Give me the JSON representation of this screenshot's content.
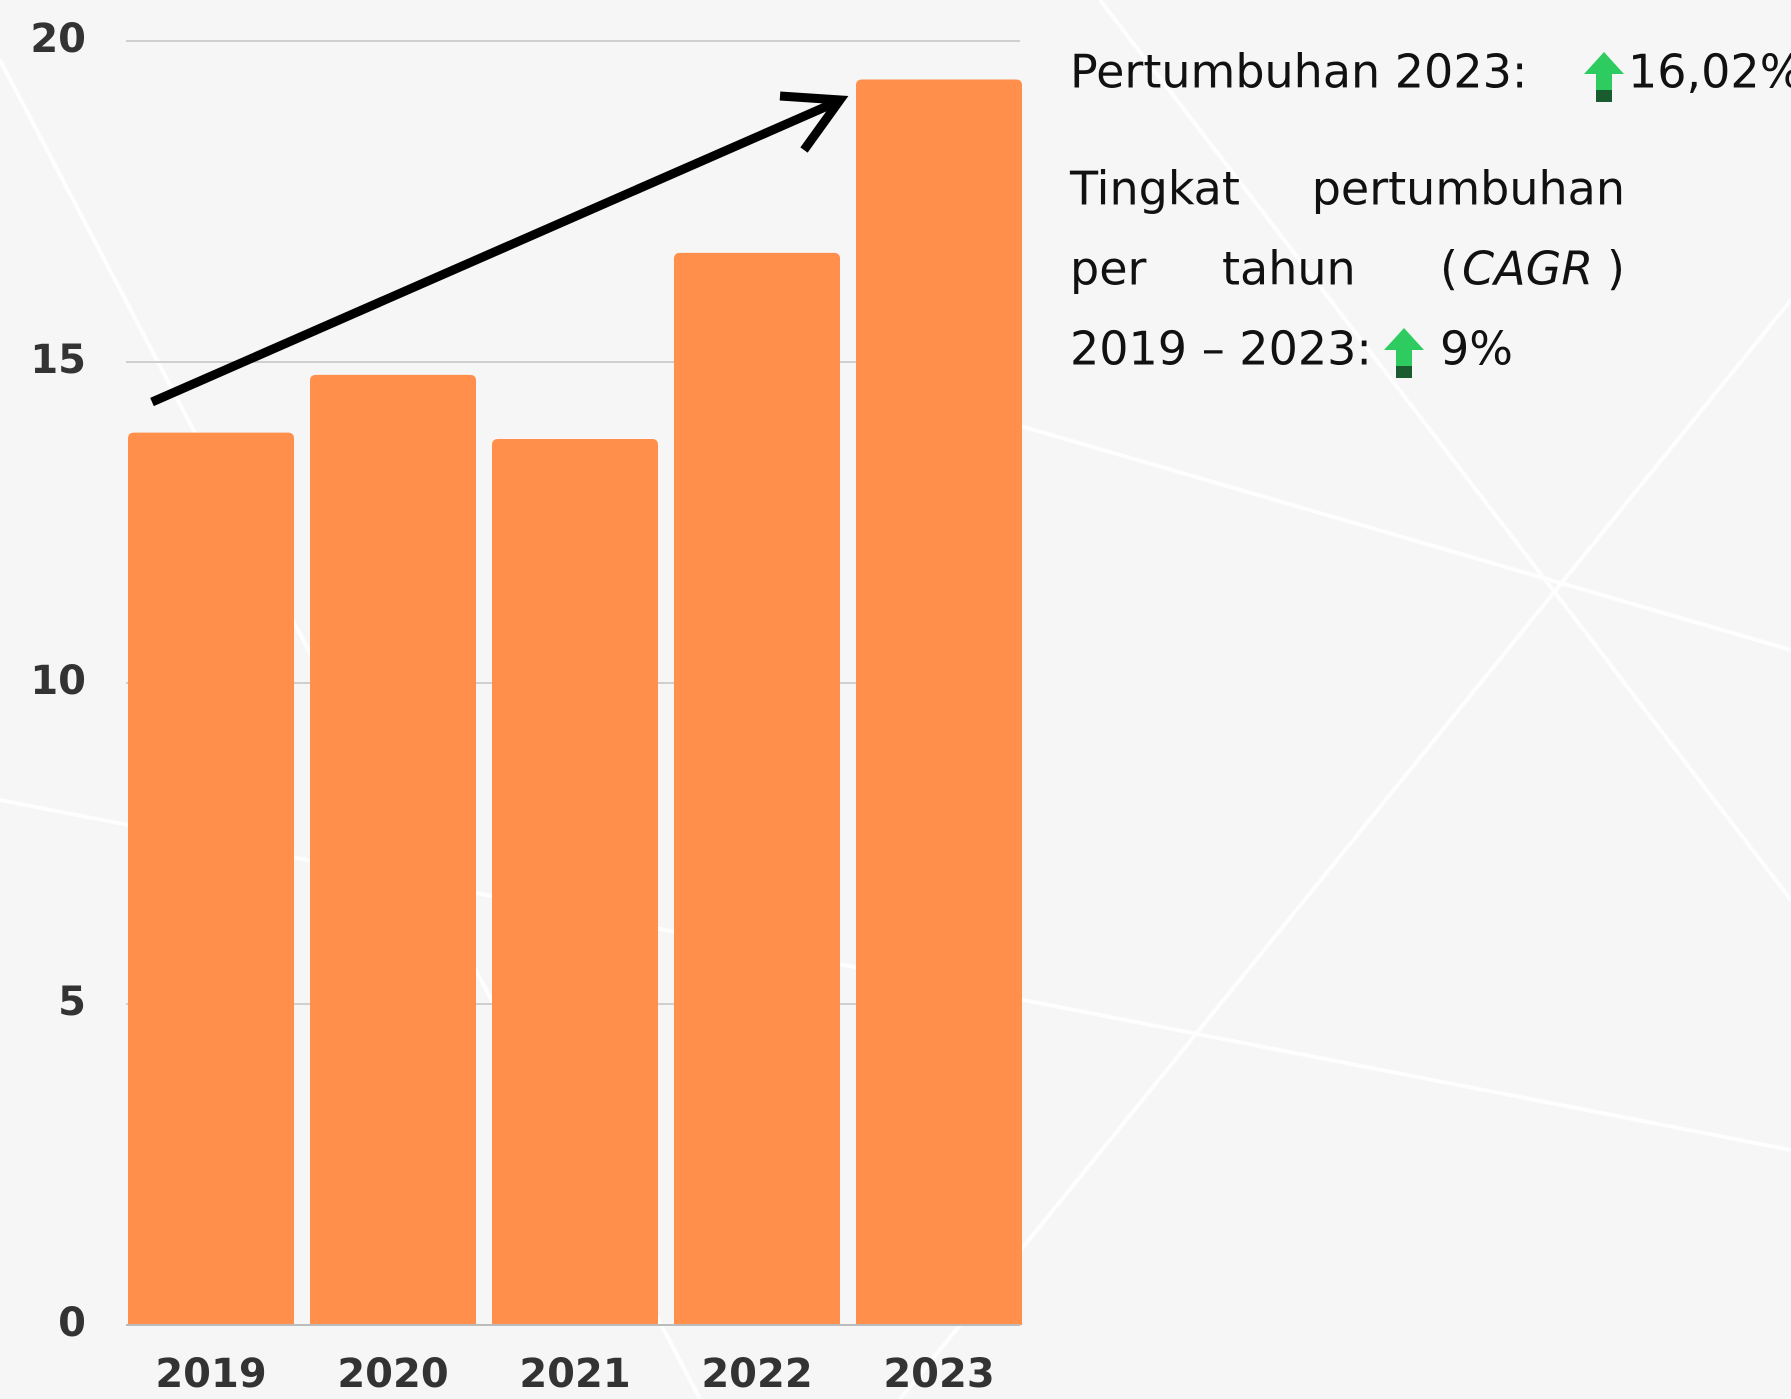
{
  "chart_data": {
    "type": "bar",
    "categories": [
      "2019",
      "2020",
      "2021",
      "2022",
      "2023"
    ],
    "values": [
      13.9,
      14.8,
      13.8,
      16.7,
      19.4
    ],
    "color": "#ff8f4b",
    "ylim": [
      0,
      20
    ],
    "yticks": [
      0,
      5,
      10,
      15,
      20
    ],
    "grid": true,
    "annotations": {
      "growth_label": "Pertumbuhan 2023:",
      "growth_value": "16,02%",
      "cagr_words": [
        "Tingkat",
        "pertumbuhan",
        "per",
        "tahun",
        "(",
        "CAGR",
        ")",
        "2019 – 2023:"
      ],
      "cagr_value": "9%"
    }
  }
}
